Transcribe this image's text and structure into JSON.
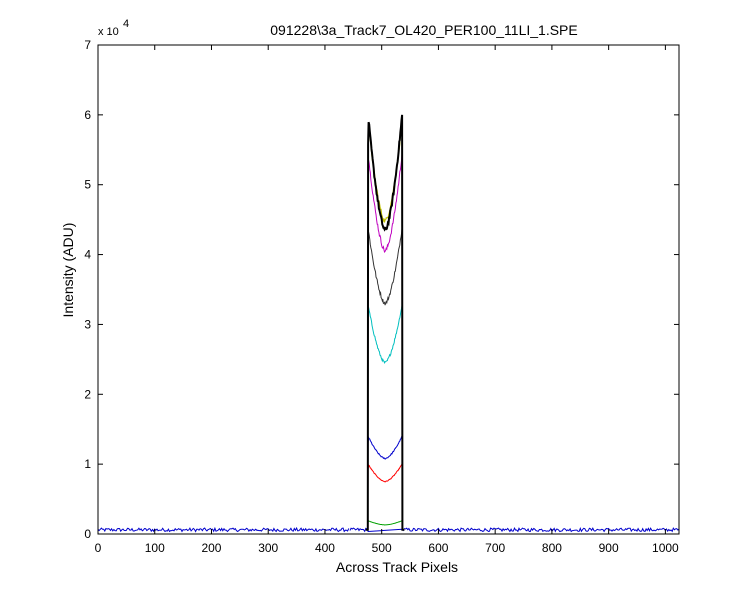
{
  "chart_data": {
    "type": "line",
    "title": "091228\\3a_Track7_OL420_PER100_11LI_1.SPE",
    "xlabel": "Across Track Pixels",
    "ylabel": "Intensity (ADU)",
    "y_multiplier_base": "x 10",
    "y_multiplier_exponent": "4",
    "xlim": [
      0,
      1024
    ],
    "ylim": [
      0,
      70000
    ],
    "x_ticks": [
      0,
      100,
      200,
      300,
      400,
      500,
      600,
      700,
      800,
      900,
      1000
    ],
    "x_tick_labels": [
      "0",
      "100",
      "200",
      "300",
      "400",
      "500",
      "600",
      "700",
      "800",
      "900",
      "1000"
    ],
    "y_ticks": [
      0,
      10000,
      20000,
      30000,
      40000,
      50000,
      60000,
      70000
    ],
    "y_tick_labels": [
      "0",
      "1",
      "2",
      "3",
      "4",
      "5",
      "6",
      "7"
    ],
    "grid": false,
    "legend": "none",
    "window": {
      "x_start": 476,
      "x_end": 536,
      "baseline": 600
    },
    "series": [
      {
        "color": "#00a000",
        "profile": {
          "edge": 1900,
          "center": 1300,
          "outside": 600
        }
      },
      {
        "color": "#ff0000",
        "profile": {
          "edge": 10000,
          "center": 7500,
          "outside": 600
        }
      },
      {
        "color": "#0000cc",
        "profile": {
          "edge": 14000,
          "center": 10800,
          "outside": 600
        }
      },
      {
        "color": "#00bfbf",
        "profile": {
          "edge": 32800,
          "center": 24500,
          "outside": 600
        }
      },
      {
        "color": "#333333",
        "profile": {
          "edge": 43800,
          "center": 33000,
          "outside": 600
        }
      },
      {
        "color": "#bf00bf",
        "profile": {
          "edge": 54500,
          "center": 40500,
          "outside": 600
        }
      },
      {
        "color": "#bfbf00",
        "profile": {
          "edge": 59000,
          "center": 44800,
          "outside": 600
        }
      },
      {
        "color": "#000000",
        "profile": {
          "edge": 60000,
          "center": 43500,
          "outside": 600
        }
      }
    ]
  }
}
